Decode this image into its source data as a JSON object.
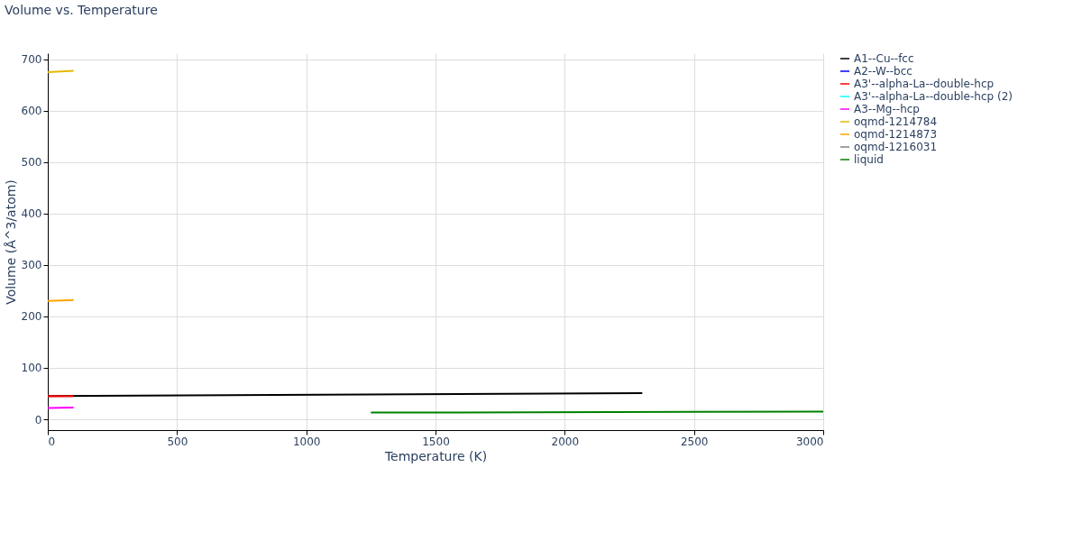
{
  "chart_data": {
    "type": "line",
    "title": "Volume vs. Temperature",
    "xlabel": "Temperature (K)",
    "ylabel": "Volume (Å^3/atom)",
    "xlim": [
      0,
      3000
    ],
    "xticks": [
      0,
      500,
      1000,
      1500,
      2000,
      2500,
      3000
    ],
    "ylim": [
      -21,
      712
    ],
    "yticks": [
      0,
      100,
      200,
      300,
      400,
      500,
      600,
      700
    ],
    "grid": true,
    "legend": "top right",
    "line_style": "solid",
    "marker": "none",
    "series": [
      {
        "name": "A1--Cu--fcc",
        "color": "#000000",
        "x": [
          0,
          2300
        ],
        "values": [
          45,
          51
        ]
      },
      {
        "name": "A2--W--bcc",
        "color": "#0000ff"
      },
      {
        "name": "A3'--alpha-La--double-hcp",
        "color": "#ff0000",
        "x": [
          0,
          100
        ],
        "values": [
          45,
          45
        ]
      },
      {
        "name": "A3'--alpha-La--double-hcp (2)",
        "color": "#00ffff"
      },
      {
        "name": "A3--Mg--hcp",
        "color": "#ff00ff",
        "x": [
          0,
          100
        ],
        "values": [
          22,
          23
        ]
      },
      {
        "name": "oqmd-1214784",
        "color": "#e6b800",
        "x": [
          0,
          100
        ],
        "values": [
          675,
          678
        ]
      },
      {
        "name": "oqmd-1214873",
        "color": "#ffa500",
        "x": [
          0,
          100
        ],
        "values": [
          230,
          232
        ]
      },
      {
        "name": "oqmd-1216031",
        "color": "#808080"
      },
      {
        "name": "liquid",
        "color": "#008000",
        "x": [
          1250,
          3000
        ],
        "values": [
          13,
          15
        ]
      }
    ]
  }
}
